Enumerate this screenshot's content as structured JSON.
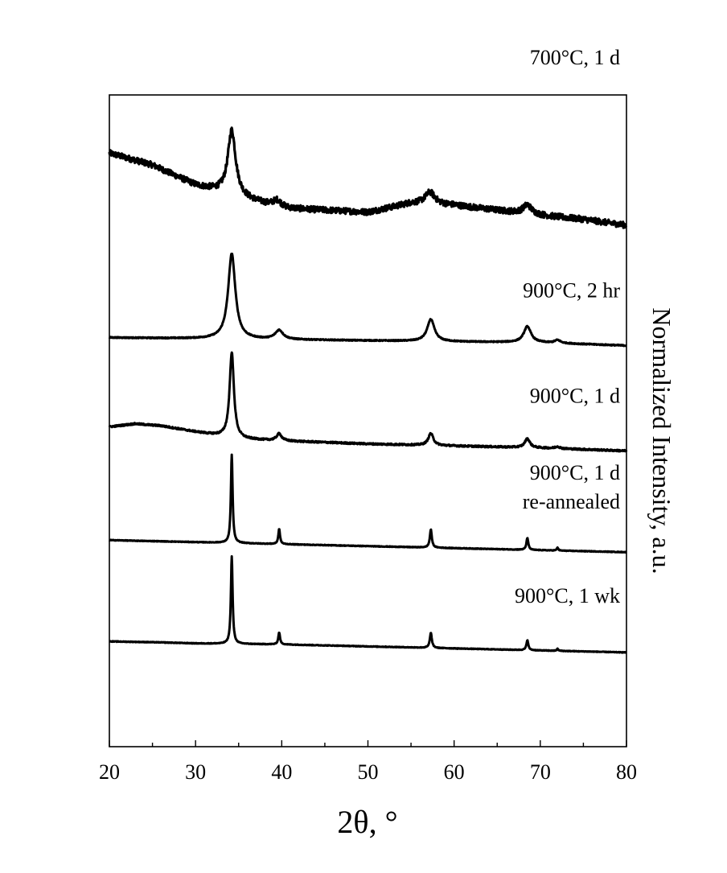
{
  "chart_data": {
    "type": "line",
    "title": "",
    "xlabel": "2θ, °",
    "ylabel": "Normalized Intensity, a.u.",
    "xlim": [
      20,
      80
    ],
    "ylim": [
      0,
      6.5
    ],
    "x_ticks": [
      "20",
      "30",
      "40",
      "50",
      "60",
      "70",
      "80"
    ],
    "y_ticks": [],
    "grid": false,
    "legend": "none",
    "series": [
      {
        "name": "700°C, 1 d",
        "label_lines": [
          "700°C, 1 d"
        ],
        "offset": 5.2,
        "baseline": [
          [
            20,
            0.72
          ],
          [
            25,
            0.6
          ],
          [
            30,
            0.4
          ],
          [
            35,
            0.28
          ],
          [
            40,
            0.17
          ],
          [
            50,
            0.13
          ],
          [
            55,
            0.22
          ],
          [
            60,
            0.2
          ],
          [
            65,
            0.15
          ],
          [
            70,
            0.1
          ],
          [
            75,
            0.06
          ],
          [
            80,
            0.0
          ]
        ],
        "noise": 0.03,
        "peaks": [
          {
            "x": 34.2,
            "height": 0.65,
            "width": 0.55
          },
          {
            "x": 39.5,
            "height": 0.07,
            "width": 0.6
          },
          {
            "x": 57.2,
            "height": 0.12,
            "width": 0.7
          },
          {
            "x": 68.5,
            "height": 0.09,
            "width": 0.6
          }
        ]
      },
      {
        "name": "900°C, 2 hr",
        "label_lines": [
          "900°C, 2 hr"
        ],
        "offset": 4.03,
        "baseline": [
          [
            20,
            0.05
          ],
          [
            30,
            0.04
          ],
          [
            40,
            0.03
          ],
          [
            50,
            0.02
          ],
          [
            60,
            0.01
          ],
          [
            70,
            0.0
          ],
          [
            80,
            -0.03
          ]
        ],
        "noise": 0.005,
        "peaks": [
          {
            "x": 34.2,
            "height": 0.85,
            "width": 0.5
          },
          {
            "x": 39.7,
            "height": 0.09,
            "width": 0.55
          },
          {
            "x": 57.3,
            "height": 0.22,
            "width": 0.5
          },
          {
            "x": 68.5,
            "height": 0.16,
            "width": 0.5
          },
          {
            "x": 72.0,
            "height": 0.03,
            "width": 0.4
          }
        ]
      },
      {
        "name": "900°C, 1 d",
        "label_lines": [
          "900°C, 1 d"
        ],
        "offset": 3.0,
        "baseline": [
          [
            20,
            0.19
          ],
          [
            23,
            0.22
          ],
          [
            26,
            0.2
          ],
          [
            30,
            0.14
          ],
          [
            35,
            0.07
          ],
          [
            40,
            0.05
          ],
          [
            50,
            0.02
          ],
          [
            60,
            0.0
          ],
          [
            70,
            -0.02
          ],
          [
            80,
            -0.05
          ]
        ],
        "noise": 0.008,
        "peaks": [
          {
            "x": 34.2,
            "height": 0.85,
            "width": 0.3
          },
          {
            "x": 39.7,
            "height": 0.07,
            "width": 0.35
          },
          {
            "x": 57.3,
            "height": 0.12,
            "width": 0.35
          },
          {
            "x": 68.5,
            "height": 0.09,
            "width": 0.35
          },
          {
            "x": 72.0,
            "height": 0.02,
            "width": 0.3
          }
        ]
      },
      {
        "name": "900°C, 1 d re-annealed",
        "label_lines": [
          "900°C, 1 d",
          "re-annealed"
        ],
        "offset": 2.0,
        "baseline": [
          [
            20,
            0.06
          ],
          [
            30,
            0.04
          ],
          [
            40,
            0.02
          ],
          [
            50,
            0.0
          ],
          [
            60,
            -0.02
          ],
          [
            70,
            -0.04
          ],
          [
            80,
            -0.06
          ]
        ],
        "noise": 0.003,
        "peaks": [
          {
            "x": 34.2,
            "height": 0.88,
            "width": 0.12
          },
          {
            "x": 39.7,
            "height": 0.15,
            "width": 0.12
          },
          {
            "x": 57.3,
            "height": 0.18,
            "width": 0.14
          },
          {
            "x": 68.5,
            "height": 0.12,
            "width": 0.13
          },
          {
            "x": 72.0,
            "height": 0.03,
            "width": 0.1
          }
        ]
      },
      {
        "name": "900°C, 1 wk",
        "label_lines": [
          "900°C, 1 wk"
        ],
        "offset": 1.0,
        "baseline": [
          [
            20,
            0.05
          ],
          [
            26,
            0.04
          ],
          [
            30,
            0.03
          ],
          [
            40,
            0.02
          ],
          [
            50,
            0.0
          ],
          [
            60,
            -0.02
          ],
          [
            70,
            -0.04
          ],
          [
            80,
            -0.06
          ]
        ],
        "noise": 0.003,
        "peaks": [
          {
            "x": 34.2,
            "height": 0.87,
            "width": 0.12
          },
          {
            "x": 39.7,
            "height": 0.12,
            "width": 0.12
          },
          {
            "x": 57.3,
            "height": 0.15,
            "width": 0.14
          },
          {
            "x": 68.5,
            "height": 0.1,
            "width": 0.13
          },
          {
            "x": 72.0,
            "height": 0.02,
            "width": 0.1
          }
        ]
      }
    ]
  }
}
